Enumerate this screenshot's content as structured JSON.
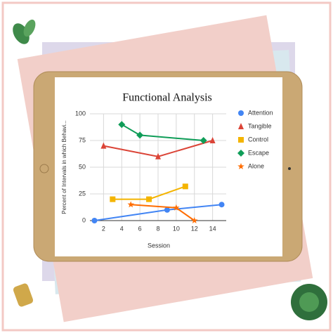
{
  "chart_data": {
    "type": "line",
    "title": "Functional Analysis",
    "x_label": "Session",
    "y_label": "Percent of Intervals in which Behavi...",
    "xlim": [
      0.5,
      15.5
    ],
    "xticks": [
      2,
      4,
      6,
      8,
      10,
      12,
      14
    ],
    "ylim": [
      0,
      100
    ],
    "yticks": [
      0,
      25,
      50,
      75,
      100
    ],
    "grid": true,
    "series": [
      {
        "name": "Attention",
        "color": "#4285f4",
        "marker": "circle",
        "x": [
          1,
          9,
          15
        ],
        "values": [
          0,
          10,
          15
        ]
      },
      {
        "name": "Tangible",
        "color": "#db4437",
        "marker": "triangle",
        "x": [
          2,
          8,
          14
        ],
        "values": [
          70,
          60,
          75
        ]
      },
      {
        "name": "Control",
        "color": "#f4b400",
        "marker": "square",
        "x": [
          3,
          7,
          11
        ],
        "values": [
          20,
          20,
          32
        ]
      },
      {
        "name": "Escape",
        "color": "#0f9d58",
        "marker": "diamond",
        "x": [
          4,
          6,
          13
        ],
        "values": [
          90,
          80,
          75
        ]
      },
      {
        "name": "Alone",
        "color": "#ff6d01",
        "marker": "star",
        "x": [
          5,
          10,
          12
        ],
        "values": [
          15,
          12,
          0
        ]
      }
    ]
  }
}
